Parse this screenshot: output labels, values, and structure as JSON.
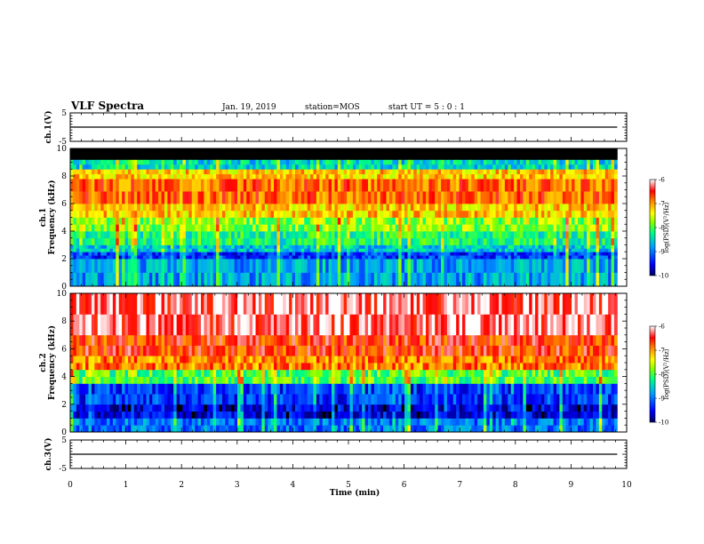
{
  "header": {
    "title": "VLF Spectra",
    "date": "Jan. 19, 2019",
    "station": "station=MOS",
    "start_ut": "start UT =  5 : 0 : 1"
  },
  "chart_data": [
    {
      "type": "line",
      "name": "ch1-waveform",
      "ylabel": "ch.1(V)",
      "ylim": [
        -5,
        5
      ],
      "yticks": [
        "5",
        "-5"
      ],
      "x": [
        0,
        9.83
      ],
      "y": [
        0,
        0
      ]
    },
    {
      "type": "heatmap",
      "name": "ch1-spectrogram",
      "ylabel": "ch.1  Frequency  (kHz)",
      "ylim": [
        0,
        10
      ],
      "yticks": [
        "0",
        "2",
        "4",
        "6",
        "8",
        "10"
      ],
      "xlim": [
        0,
        10
      ],
      "data_extent_min": 9.83,
      "freq_bands_khz": [
        0,
        2,
        2.5,
        3,
        4,
        5,
        6,
        7.8,
        8.5,
        9.2,
        10
      ],
      "band_log_psd": [
        -8.8,
        -9.3,
        -8.6,
        -8.2,
        -7.8,
        -7.2,
        -6.8,
        -7.2,
        -8.5,
        -10.5
      ],
      "colorbar": {
        "label": "log(PSD)(V²/Hz)",
        "range": [
          -10,
          -6
        ],
        "ticks": [
          "-6",
          "-7",
          "-8",
          "-9",
          "-10"
        ]
      }
    },
    {
      "type": "heatmap",
      "name": "ch2-spectrogram",
      "ylabel": "ch.2  Frequency  (kHz)",
      "ylim": [
        0,
        10
      ],
      "yticks": [
        "0",
        "2",
        "4",
        "6",
        "8",
        "10"
      ],
      "xlim": [
        0,
        10
      ],
      "data_extent_min": 9.83,
      "freq_bands_khz": [
        0,
        1,
        2,
        3.5,
        4.5,
        5.5,
        7,
        10
      ],
      "band_log_psd": [
        -9.0,
        -9.6,
        -9.3,
        -8.0,
        -6.9,
        -6.6,
        -6.2
      ],
      "colorbar": {
        "label": "log(PSD)(V²/Hz)",
        "range": [
          -10,
          -6
        ],
        "ticks": [
          "-6",
          "-7",
          "-8",
          "-9",
          "-10"
        ]
      }
    },
    {
      "type": "line",
      "name": "ch3-waveform",
      "ylabel": "ch.3(V)",
      "ylim": [
        -5,
        5
      ],
      "yticks": [
        "5",
        "-5"
      ],
      "x": [
        0,
        9.83
      ],
      "y": [
        0,
        0
      ]
    }
  ],
  "xaxis": {
    "label": "Time  (min)",
    "ticks": [
      "0",
      "1",
      "2",
      "3",
      "4",
      "5",
      "6",
      "7",
      "8",
      "9",
      "10"
    ]
  },
  "colors": {
    "scale": [
      "#000070",
      "#0000ff",
      "#0090ff",
      "#00e0e0",
      "#00ff60",
      "#a0ff00",
      "#ffff00",
      "#ffa000",
      "#ff2000",
      "#ff9090",
      "#ffffff"
    ]
  }
}
